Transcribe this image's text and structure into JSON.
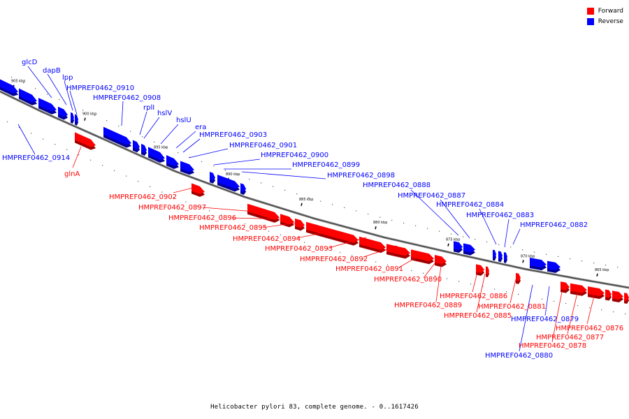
{
  "caption": "Helicobacter pylori 83, complete genome. - 0..1617426",
  "legend": [
    {
      "label": "Forward",
      "color": "#ff0000"
    },
    {
      "label": "Reverse",
      "color": "#0000ff"
    }
  ],
  "colors": {
    "forward": "#ff0000",
    "reverse": "#0000ff",
    "axis": "#707070"
  },
  "ticks": [
    "905 kbp",
    "900 kbp",
    "895 kbp",
    "890 kbp",
    "885 kbp",
    "880 kbp",
    "875 kbp",
    "870 kbp",
    "865 kbp"
  ],
  "genes": {
    "reverse": [
      "glcD",
      "dapB",
      "lpp",
      "HMPREF0462_0910",
      "HMPREF0462_0908",
      "rplI",
      "hslV",
      "hslU",
      "era",
      "HMPREF0462_0903",
      "HMPREF0462_0901",
      "HMPREF0462_0900",
      "HMPREF0462_0899",
      "HMPREF0462_0898",
      "HMPREF0462_0888",
      "HMPREF0462_0887",
      "HMPREF0462_0884",
      "HMPREF0462_0883",
      "HMPREF0462_0882",
      "HMPREF0462_0914",
      "HMPREF0462_0879",
      "HMPREF0462_0880"
    ],
    "forward": [
      "glnA",
      "HMPREF0462_0902",
      "HMPREF0462_0897",
      "HMPREF0462_0896",
      "HMPREF0462_0895",
      "HMPREF0462_0894",
      "HMPREF0462_0893",
      "HMPREF0462_0892",
      "HMPREF0462_0891",
      "HMPREF0462_0890",
      "HMPREF0462_0886",
      "HMPREF0462_0889",
      "HMPREF0462_0881",
      "HMPREF0462_0885",
      "HMPREF0462_0876",
      "HMPREF0462_0877",
      "HMPREF0462_0878"
    ]
  }
}
